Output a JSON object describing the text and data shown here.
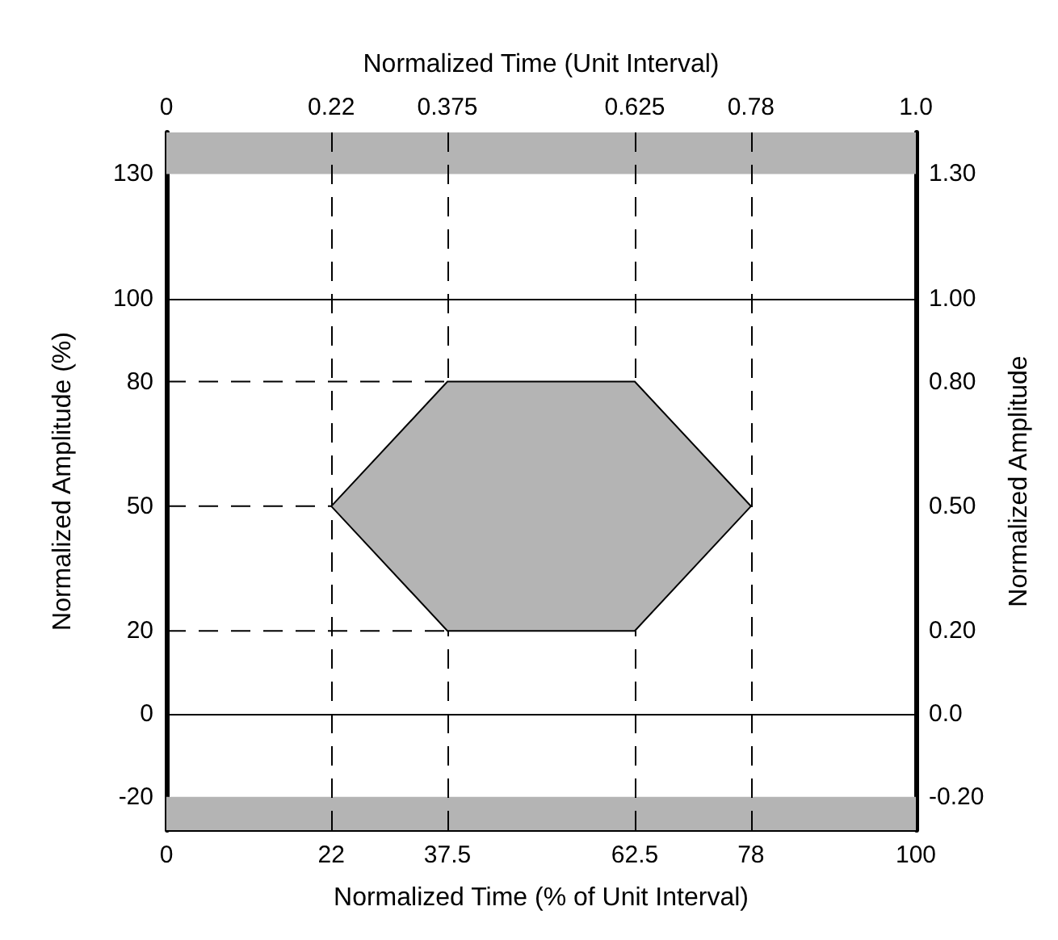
{
  "chart_data": {
    "type": "area",
    "xlabel": "Normalized Time (% of Unit Interval)",
    "x2label": "Normalized Time (Unit Interval)",
    "ylabel": "Normalized Amplitude (%)",
    "y2label": "Normalized Amplitude",
    "xlim": [
      0,
      100
    ],
    "xticks": [
      0,
      22,
      37.5,
      62.5,
      78,
      100
    ],
    "x2lim": [
      0,
      1
    ],
    "x2ticks": [
      0,
      0.22,
      0.375,
      0.625,
      0.78,
      {
        "value": 1,
        "label": "1.0"
      }
    ],
    "ylim": [
      -28,
      140
    ],
    "yticks": [
      -20,
      0,
      20,
      50,
      80,
      100,
      130
    ],
    "y2lim": [
      -0.28,
      1.4
    ],
    "y2ticks": [
      {
        "value": -0.2,
        "label": "-0.20"
      },
      {
        "value": 0,
        "label": "0.0"
      },
      {
        "value": 0.2,
        "label": "0.20"
      },
      {
        "value": 0.5,
        "label": "0.50"
      },
      {
        "value": 0.8,
        "label": "0.80"
      },
      {
        "value": 1,
        "label": "1.00"
      },
      {
        "value": 1.3,
        "label": "1.30"
      }
    ],
    "series": [
      {
        "color": "#b4b4b4",
        "x": [
          22,
          37.5,
          62.5,
          78,
          62.5,
          37.5,
          22
        ],
        "values": [
          50,
          80,
          80,
          50,
          20,
          20,
          50
        ]
      },
      {
        "type": "line",
        "color": "#000000",
        "line_style": "dashed",
        "x": [
          0,
          37.5
        ],
        "values": [
          80,
          80
        ]
      },
      {
        "type": "line",
        "color": "#000000",
        "line_style": "dashed",
        "x": [
          0,
          22
        ],
        "values": [
          50,
          50
        ]
      },
      {
        "type": "line",
        "color": "#000000",
        "line_style": "dashed",
        "x": [
          0,
          37.5
        ],
        "values": [
          20,
          20
        ]
      }
    ],
    "ref_lines": [
      {
        "axis": "x",
        "value": 22,
        "line_style": "dashed",
        "color": "#000000"
      },
      {
        "axis": "x",
        "value": 37.5,
        "line_style": "dashed",
        "color": "#000000"
      },
      {
        "axis": "x",
        "value": 62.5,
        "line_style": "dashed",
        "color": "#000000"
      },
      {
        "axis": "x",
        "value": 78,
        "line_style": "dashed",
        "color": "#000000"
      },
      {
        "axis": "y",
        "value": 0,
        "line_style": "solid",
        "color": "#000000"
      },
      {
        "axis": "y",
        "value": 100,
        "line_style": "solid",
        "color": "#000000"
      }
    ],
    "bands": [
      {
        "axis": "y",
        "from": 130,
        "to": 140,
        "color": "#b4b4b4"
      },
      {
        "axis": "y",
        "from": -28,
        "to": -20,
        "color": "#b4b4b4"
      }
    ],
    "grid": false
  }
}
